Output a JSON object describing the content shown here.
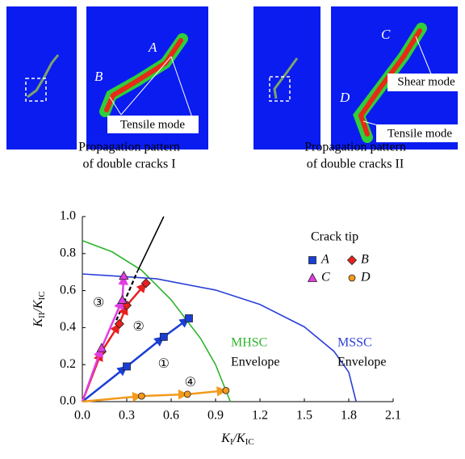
{
  "panels": [
    {
      "caption": [
        "Propagation pattern",
        "of double cracks I"
      ],
      "labels": [
        "A",
        "B",
        "Tensile mode"
      ]
    },
    {
      "caption": [
        "Propagation pattern",
        "of double cracks II"
      ],
      "labels": [
        "C",
        "Shear mode",
        "D",
        "Tensile mode"
      ]
    }
  ],
  "chart_data": {
    "type": "scatter",
    "x_label": [
      "K",
      "I",
      "/K",
      "IC"
    ],
    "y_label": [
      "K",
      "II",
      "/K",
      "IC"
    ],
    "xlim": [
      0,
      2.1
    ],
    "ylim": [
      0,
      1.0
    ],
    "xticks": [
      {
        "value": 0,
        "label": "0.0"
      },
      0.3,
      0.6,
      0.9,
      1.2,
      1.5,
      1.8,
      2.1
    ],
    "yticks": [
      {
        "value": 0,
        "label": "0.0"
      },
      0.2,
      0.4,
      0.6,
      0.8,
      {
        "value": 1,
        "label": "1.0"
      }
    ],
    "legend_title": "Crack tip",
    "series": [
      {
        "name": "A",
        "color": "#1a3fd6",
        "marker": "square",
        "x": [
          0.3,
          0.55,
          0.72
        ],
        "values": [
          0.19,
          0.35,
          0.45
        ]
      },
      {
        "name": "B",
        "color": "#e8201e",
        "marker": "diamond",
        "x": [
          0.13,
          0.25,
          0.3,
          0.43
        ],
        "values": [
          0.27,
          0.42,
          0.52,
          0.64
        ]
      },
      {
        "name": "C",
        "color": "#e23ce2",
        "marker": "triangle",
        "x": [
          0.13,
          0.27,
          0.28
        ],
        "values": [
          0.29,
          0.55,
          0.68
        ]
      },
      {
        "name": "D",
        "color": "#f29a1c",
        "marker": "circle",
        "x": [
          0.4,
          0.71,
          0.97
        ],
        "values": [
          0.03,
          0.04,
          0.06
        ]
      }
    ],
    "curves": [
      {
        "name": "MHSC",
        "note": "Envelope",
        "color": "#2db52d",
        "x": [
          0,
          0.2,
          0.4,
          0.6,
          0.8,
          0.9,
          1.0
        ],
        "values": [
          0.87,
          0.81,
          0.71,
          0.55,
          0.34,
          0.2,
          0
        ]
      },
      {
        "name": "MSSC",
        "note": "Envelope",
        "color": "#2a3fd8",
        "x": [
          0,
          0.5,
          0.9,
          1.2,
          1.5,
          1.7,
          1.8,
          1.85
        ],
        "values": [
          0.69,
          0.664,
          0.603,
          0.525,
          0.404,
          0.272,
          0.159,
          0
        ]
      },
      {
        "color": "#000000",
        "dashed": true,
        "x": [
          0.23,
          0.3,
          0.37
        ],
        "values": [
          0.44,
          0.57,
          0.7
        ]
      },
      {
        "color": "#000000",
        "x": [
          0.37,
          0.55
        ],
        "values": [
          0.7,
          1.0
        ]
      }
    ],
    "region_labels": [
      "①",
      "②",
      "③",
      "④"
    ]
  }
}
